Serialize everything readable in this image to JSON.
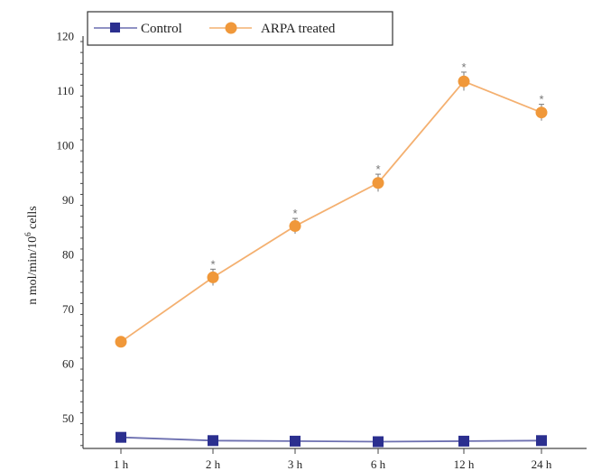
{
  "chart_data": {
    "type": "line",
    "categories": [
      "1 h",
      "2 h",
      "3 h",
      "6 h",
      "12 h",
      "24 h"
    ],
    "series": [
      {
        "name": "Control",
        "values": [
          46.5,
          45.9,
          45.8,
          45.7,
          45.8,
          45.9
        ],
        "errors": [
          0.5,
          0.5,
          0.4,
          0.4,
          0.4,
          0.4
        ],
        "color": "#2b2f8f",
        "line_color": "#6c6fb0",
        "marker": "square"
      },
      {
        "name": "ARPA treated",
        "values": [
          64.0,
          75.8,
          85.2,
          93.1,
          111.7,
          106.0
        ],
        "errors": [
          0.3,
          1.5,
          1.4,
          1.6,
          1.7,
          1.5
        ],
        "color": "#f0983a",
        "line_color": "#f4b070",
        "marker": "circle"
      }
    ],
    "ylabel_main": "n mol/min/10",
    "ylabel_sup": "6",
    "ylabel_tail": " cells",
    "ylim": [
      44,
      120
    ],
    "yticks": [
      50,
      60,
      70,
      80,
      90,
      100,
      110,
      120
    ],
    "grid": false,
    "legend_position": "top-left",
    "significance_marker": "*"
  }
}
